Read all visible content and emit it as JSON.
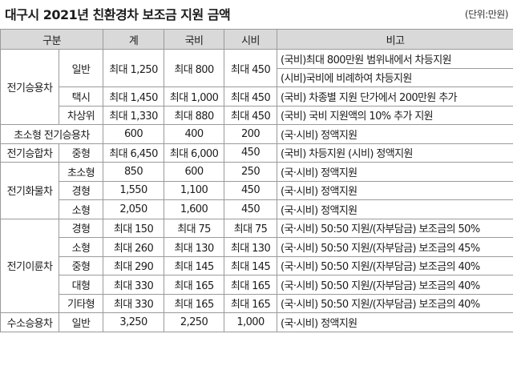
{
  "title": "대구시 2021년 친환경차 보조금 지원 금액",
  "unit": "(단위:만원)",
  "headers": {
    "category": "구분",
    "total": "계",
    "national": "국비",
    "city": "시비",
    "note": "비고"
  },
  "rows": {
    "ev_passenger": {
      "category": "전기승용차",
      "general": {
        "sub": "일반",
        "total": "최대 1,250",
        "national": "최대 800",
        "city": "최대 450",
        "note1": "(국비)최대 800만원 범위내에서 차등지원",
        "note2": "(시비)국비에 비례하여 차등지원"
      },
      "taxi": {
        "sub": "택시",
        "total": "최대 1,450",
        "national": "최대 1,000",
        "city": "최대 450",
        "note": "(국비) 차종별 지원 단가에서 200만원 추가"
      },
      "disabled": {
        "sub": "차상위",
        "total": "최대 1,330",
        "national": "최대 880",
        "city": "최대 450",
        "note": "(국비) 국비 지원액의 10% 추가 지원"
      }
    },
    "ultra_small": {
      "category": "초소형 전기승용차",
      "total": "600",
      "national": "400",
      "city": "200",
      "note": "(국·시비) 정액지원"
    },
    "ev_van": {
      "category": "전기승합차",
      "sub": "중형",
      "total": "최대 6,450",
      "national": "최대 6,000",
      "city": "450",
      "note": "(국비) 차등지원 (시비) 정액지원"
    },
    "ev_truck": {
      "category": "전기화물차",
      "items": [
        {
          "sub": "초소형",
          "total": "850",
          "national": "600",
          "city": "250",
          "note": "(국·시비) 정액지원"
        },
        {
          "sub": "경형",
          "total": "1,550",
          "national": "1,100",
          "city": "450",
          "note": "(국·시비) 정액지원"
        },
        {
          "sub": "소형",
          "total": "2,050",
          "national": "1,600",
          "city": "450",
          "note": "(국·시비) 정액지원"
        }
      ]
    },
    "ev_twowheel": {
      "category": "전기이륜차",
      "items": [
        {
          "sub": "경형",
          "total": "최대 150",
          "national": "최대 75",
          "city": "최대 75",
          "note": "(국·시비) 50:50 지원/(자부담금) 보조금의 50%"
        },
        {
          "sub": "소형",
          "total": "최대 260",
          "national": "최대 130",
          "city": "최대 130",
          "note": "(국·시비) 50:50 지원/(자부담금) 보조금의 45%"
        },
        {
          "sub": "중형",
          "total": "최대 290",
          "national": "최대 145",
          "city": "최대 145",
          "note": "(국·시비) 50:50 지원/(자부담금) 보조금의 40%"
        },
        {
          "sub": "대형",
          "total": "최대 330",
          "national": "최대 165",
          "city": "최대 165",
          "note": "(국·시비) 50:50 지원/(자부담금) 보조금의 40%"
        },
        {
          "sub": "기타형",
          "total": "최대 330",
          "national": "최대 165",
          "city": "최대 165",
          "note": "(국·시비) 50:50 지원/(자부담금) 보조금의 40%"
        }
      ]
    },
    "hydrogen": {
      "category": "수소승용차",
      "sub": "일반",
      "total": "3,250",
      "national": "2,250",
      "city": "1,000",
      "note": "(국·시비) 정액지원"
    }
  }
}
